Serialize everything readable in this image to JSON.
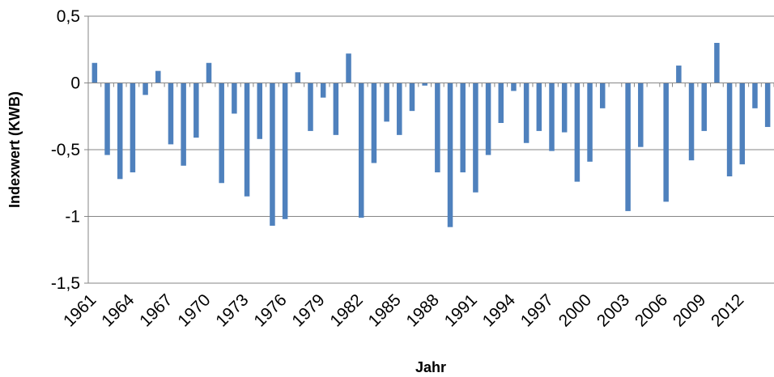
{
  "chart_data": {
    "type": "bar",
    "title": "",
    "xlabel": "Jahr",
    "ylabel": "Indexwert (KWB)",
    "ylim": [
      -1.5,
      0.5
    ],
    "y_ticks": [
      "0,5",
      "0",
      "-0,5",
      "-1",
      "-1,5"
    ],
    "y_tick_values": [
      0.5,
      0,
      -0.5,
      -1,
      -1.5
    ],
    "grid": true,
    "legend": "none",
    "bar_color": "#4F81BD",
    "x_tick_labels": [
      "1961",
      "1964",
      "1967",
      "1970",
      "1973",
      "1976",
      "1979",
      "1982",
      "1985",
      "1988",
      "1991",
      "1994",
      "1997",
      "2000",
      "2003",
      "2006",
      "2009",
      "2012"
    ],
    "categories": [
      "1961",
      "1962",
      "1963",
      "1964",
      "1965",
      "1966",
      "1967",
      "1968",
      "1969",
      "1970",
      "1971",
      "1972",
      "1973",
      "1974",
      "1975",
      "1976",
      "1977",
      "1978",
      "1979",
      "1980",
      "1981",
      "1982",
      "1983",
      "1984",
      "1985",
      "1986",
      "1987",
      "1988",
      "1989",
      "1990",
      "1991",
      "1992",
      "1993",
      "1994",
      "1995",
      "1996",
      "1997",
      "1998",
      "1999",
      "2000",
      "2001",
      "2002",
      "2003",
      "2004",
      "2005",
      "2006",
      "2007",
      "2008",
      "2009",
      "2010",
      "2011",
      "2012",
      "2013",
      "2014"
    ],
    "values": [
      0.15,
      -0.54,
      -0.72,
      -0.67,
      -0.09,
      0.09,
      -0.46,
      -0.62,
      -0.41,
      0.15,
      -0.75,
      -0.23,
      -0.85,
      -0.42,
      -1.07,
      -1.02,
      0.08,
      -0.36,
      -0.11,
      -0.39,
      0.22,
      -1.01,
      -0.6,
      -0.29,
      -0.39,
      -0.21,
      -0.02,
      -0.67,
      -1.08,
      -0.67,
      -0.82,
      -0.54,
      -0.3,
      -0.06,
      -0.45,
      -0.36,
      -0.51,
      -0.37,
      -0.74,
      -0.59,
      -0.19,
      0.0,
      -0.96,
      -0.48,
      0.0,
      -0.89,
      0.13,
      -0.58,
      -0.36,
      0.3,
      -0.7,
      -0.61,
      -0.19,
      -0.33
    ]
  }
}
